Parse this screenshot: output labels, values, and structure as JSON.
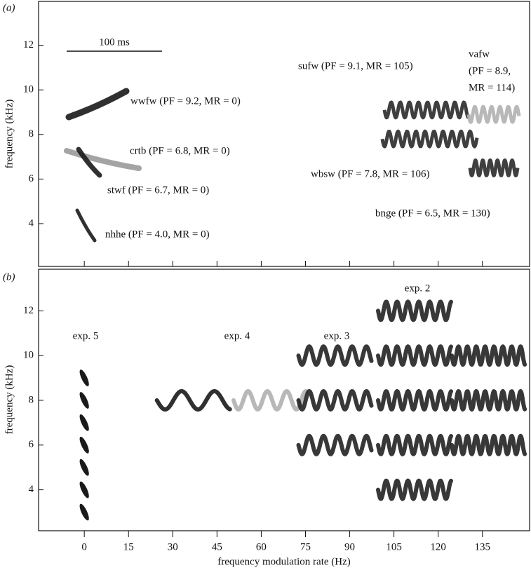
{
  "chart_data": [
    {
      "type": "trace",
      "panel_label": "(a)",
      "y_label": "frequency (kHz)",
      "ylim": [
        2.08,
        13.97
      ],
      "yticks": [
        4,
        6,
        8,
        10,
        12
      ],
      "scale_bar": "100 ms",
      "calls": [
        {
          "label": "wwfw (PF = 9.2, MR = 0)",
          "pf": 9.2,
          "mr": 0,
          "color": "#1a1a1a"
        },
        {
          "label": "crtb (PF = 6.8, MR = 0)",
          "pf": 6.8,
          "mr": 0,
          "color": "#9a9a9a"
        },
        {
          "label": "stwf (PF = 6.7, MR = 0)",
          "pf": 6.7,
          "mr": 0,
          "color": "#1a1a1a"
        },
        {
          "label": "nhhe (PF = 4.0, MR = 0)",
          "pf": 4.0,
          "mr": 0,
          "color": "#1a1a1a"
        },
        {
          "label": "sufw (PF = 9.1, MR = 105)",
          "pf": 9.1,
          "mr": 105,
          "color": "#2a2a2a"
        },
        {
          "label": [
            "vafw",
            "(PF = 8.9,",
            "MR = 114)"
          ],
          "pf": 8.9,
          "mr": 114,
          "color": "#b0b0b0"
        },
        {
          "label": "wbsw (PF = 7.8, MR = 106)",
          "pf": 7.8,
          "mr": 106,
          "color": "#2a2a2a"
        },
        {
          "label": "bnge (PF = 6.5, MR = 130)",
          "pf": 6.5,
          "mr": 130,
          "color": "#2a2a2a"
        }
      ]
    },
    {
      "type": "trace",
      "panel_label": "(b)",
      "y_label": "frequency (kHz)",
      "x_label": "frequency modulation rate (Hz)",
      "xlim": [
        -15.5,
        151
      ],
      "ylim": [
        2.17,
        13.86
      ],
      "xticks": [
        0,
        15,
        30,
        45,
        60,
        75,
        90,
        105,
        120,
        135
      ],
      "yticks": [
        4,
        6,
        8,
        10,
        12
      ],
      "series": [
        {
          "name": "exp. 5",
          "color": "#1a1a1a",
          "x": [
            0,
            0,
            0,
            0,
            0,
            0,
            0
          ],
          "values": [
            9,
            8,
            7,
            6,
            5,
            4,
            3
          ]
        },
        {
          "name": "exp. 4",
          "colors": [
            "#1a1a1a",
            "#b0b0b0"
          ],
          "x": [
            37,
            63
          ],
          "values": [
            8,
            8
          ]
        },
        {
          "name": "exp. 3",
          "color": "#222222",
          "x": [
            85,
            85,
            85
          ],
          "values": [
            10,
            8,
            6
          ]
        },
        {
          "name": "exp. 2",
          "color": "#222222",
          "x": [
            112,
            112,
            112,
            112,
            112,
            137,
            137,
            137
          ],
          "values": [
            12,
            10,
            8,
            6,
            4,
            10,
            8,
            6
          ]
        }
      ]
    }
  ]
}
